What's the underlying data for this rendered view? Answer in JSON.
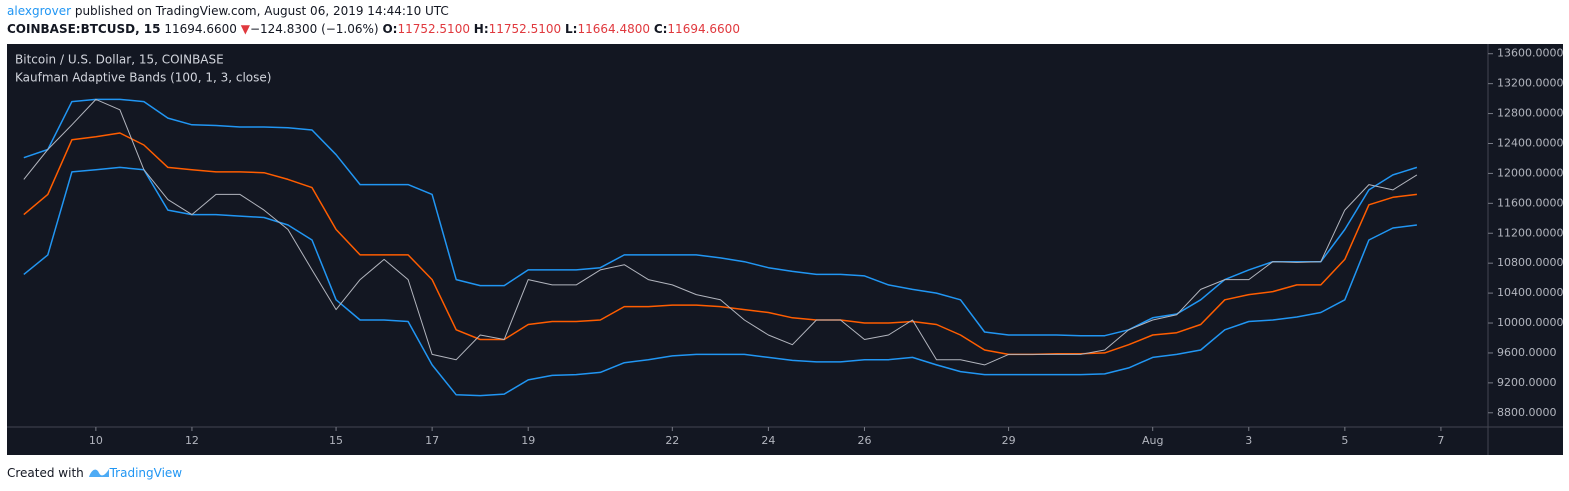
{
  "header": {
    "author": "alexgrover",
    "published": " published on TradingView.com, August 06, 2019 14:44:10 UTC",
    "symbol": "COINBASE:BTCUSD, 15",
    "last": "11694.6600",
    "arrow": "▼",
    "change": "−124.8300 (−1.06%)",
    "o_label": "O:",
    "o": "11752.5100",
    "h_label": "H:",
    "h": "11752.5100",
    "l_label": "L:",
    "l": "11664.4800",
    "c_label": "C:",
    "c": "11694.6600"
  },
  "chart_data": {
    "type": "line",
    "legend_lines": [
      "Bitcoin / U.S. Dollar, 15, COINBASE",
      "Kaufman Adaptive Bands (100, 1, 3, close)"
    ],
    "x": [
      8.5,
      9,
      9.5,
      10,
      10.5,
      11,
      11.5,
      12,
      12.5,
      13,
      13.5,
      14,
      14.5,
      15,
      15.5,
      16,
      16.5,
      17,
      17.5,
      18,
      18.5,
      19,
      19.5,
      20,
      20.5,
      21,
      21.5,
      22,
      22.5,
      23,
      23.5,
      24,
      24.5,
      25,
      25.5,
      26,
      26.5,
      27,
      27.5,
      28,
      28.5,
      29,
      29.5,
      30,
      30.5,
      31,
      31.5,
      32,
      32.5,
      33,
      33.5,
      34,
      34.5,
      35,
      35.5,
      36,
      36.5,
      37,
      37.5
    ],
    "series": [
      {
        "color": "#2196f3",
        "values": [
          12210,
          12320,
          12960,
          12990,
          12990,
          12960,
          12740,
          12650,
          12640,
          12620,
          12620,
          12610,
          12580,
          12250,
          11850,
          11850,
          11850,
          11720,
          10580,
          10500,
          10500,
          10710,
          10710,
          10710,
          10740,
          10910,
          10910,
          10910,
          10910,
          10870,
          10820,
          10740,
          10690,
          10650,
          10650,
          10630,
          10510,
          10450,
          10400,
          10310,
          9880,
          9840,
          9840,
          9840,
          9830,
          9830,
          9910,
          10070,
          10120,
          10310,
          10580,
          10710,
          10820,
          10820,
          10820,
          11250,
          11780,
          11980,
          12080
        ]
      },
      {
        "color": "#2196f3",
        "values": [
          10650,
          10910,
          12020,
          12050,
          12080,
          12050,
          11510,
          11450,
          11450,
          11430,
          11410,
          11310,
          11110,
          10310,
          10040,
          10040,
          10020,
          9440,
          9040,
          9030,
          9050,
          9240,
          9300,
          9310,
          9340,
          9470,
          9510,
          9560,
          9580,
          9580,
          9580,
          9540,
          9500,
          9480,
          9480,
          9510,
          9510,
          9540,
          9440,
          9350,
          9310,
          9310,
          9310,
          9310,
          9310,
          9320,
          9400,
          9540,
          9580,
          9640,
          9910,
          10020,
          10040,
          10080,
          10140,
          10310,
          11110,
          11270,
          11310
        ]
      },
      {
        "color": "#ff5d00",
        "values": [
          11450,
          11720,
          12450,
          12490,
          12540,
          12380,
          12080,
          12050,
          12020,
          12020,
          12010,
          11920,
          11810,
          11250,
          10910,
          10910,
          10910,
          10580,
          9910,
          9780,
          9780,
          9980,
          10020,
          10020,
          10040,
          10220,
          10220,
          10240,
          10240,
          10220,
          10180,
          10140,
          10070,
          10040,
          10040,
          10000,
          10000,
          10020,
          9980,
          9840,
          9640,
          9580,
          9580,
          9590,
          9590,
          9600,
          9710,
          9840,
          9870,
          9980,
          10310,
          10380,
          10420,
          10510,
          10510,
          10850,
          11580,
          11680,
          11720
        ]
      },
      {
        "color": "#b2b5be",
        "values": [
          11920,
          12320,
          12650,
          12990,
          12850,
          12050,
          11650,
          11450,
          11720,
          11720,
          11510,
          11250,
          10710,
          10180,
          10580,
          10850,
          10580,
          9580,
          9510,
          9840,
          9780,
          10580,
          10510,
          10510,
          10710,
          10780,
          10580,
          10510,
          10380,
          10310,
          10040,
          9840,
          9710,
          10040,
          10040,
          9780,
          9840,
          10040,
          9510,
          9510,
          9440,
          9580,
          9580,
          9580,
          9580,
          9640,
          9910,
          10040,
          10110,
          10450,
          10580,
          10580,
          10820,
          10810,
          10820,
          11510,
          11850,
          11780,
          11980
        ]
      }
    ],
    "xlim": [
      8.15,
      38.98
    ],
    "xticks": [
      10,
      12,
      15,
      17,
      19,
      22,
      24,
      26,
      29,
      {
        "value": 32,
        "label": "Aug"
      },
      {
        "value": 34,
        "label": "3"
      },
      {
        "value": 36,
        "label": "5"
      },
      {
        "value": 38,
        "label": "7"
      }
    ],
    "ylim": [
      8610,
      13730
    ],
    "yticks": [
      {
        "value": 8800,
        "label": "8800.0000"
      },
      {
        "value": 9200,
        "label": "9200.0000"
      },
      {
        "value": 9600,
        "label": "9600.0000"
      },
      {
        "value": 10000,
        "label": "10000.0000"
      },
      {
        "value": 10400,
        "label": "10400.0000"
      },
      {
        "value": 10800,
        "label": "10800.0000"
      },
      {
        "value": 11200,
        "label": "11200.0000"
      },
      {
        "value": 11600,
        "label": "11600.0000"
      },
      {
        "value": 12000,
        "label": "12000.0000"
      },
      {
        "value": 12400,
        "label": "12400.0000"
      },
      {
        "value": 12800,
        "label": "12800.0000"
      },
      {
        "value": 13200,
        "label": "13200.0000"
      },
      {
        "value": 13600,
        "label": "13600.0000"
      }
    ],
    "grid": false
  },
  "footer": {
    "created": "Created with",
    "brand": "TradingView"
  }
}
